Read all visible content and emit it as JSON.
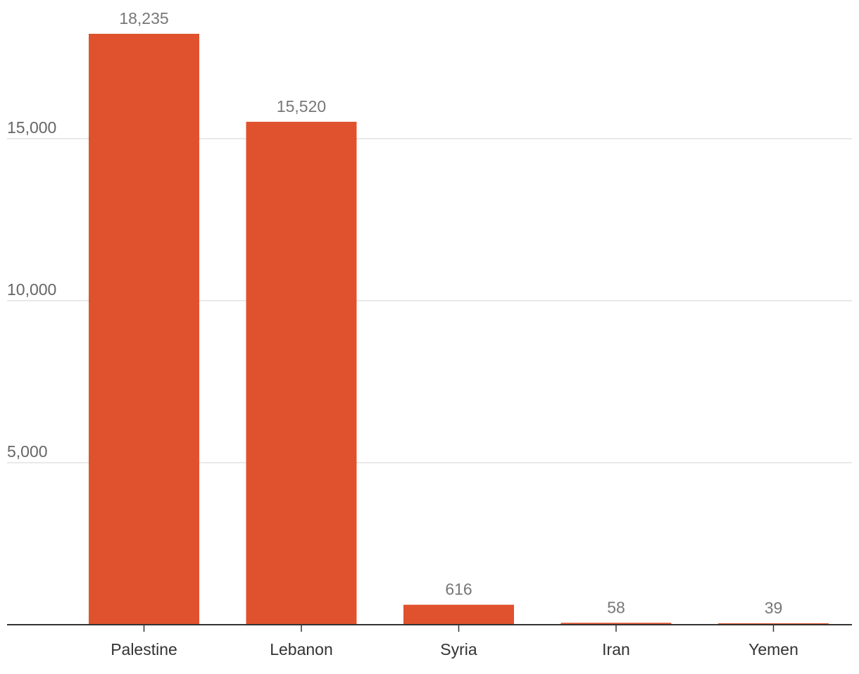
{
  "chart_data": {
    "type": "bar",
    "categories": [
      "Palestine",
      "Lebanon",
      "Syria",
      "Iran",
      "Yemen"
    ],
    "values": [
      18235,
      15520,
      616,
      58,
      39
    ],
    "value_labels": [
      "18,235",
      "15,520",
      "616",
      "58",
      "39"
    ],
    "title": "",
    "xlabel": "",
    "ylabel": "",
    "ylim": [
      0,
      18235
    ],
    "yticks": [
      5000,
      10000,
      15000
    ],
    "ytick_labels": [
      "5,000",
      "10,000",
      "15,000"
    ],
    "grid": true,
    "legend": "none",
    "bar_color": "#e0522d"
  }
}
